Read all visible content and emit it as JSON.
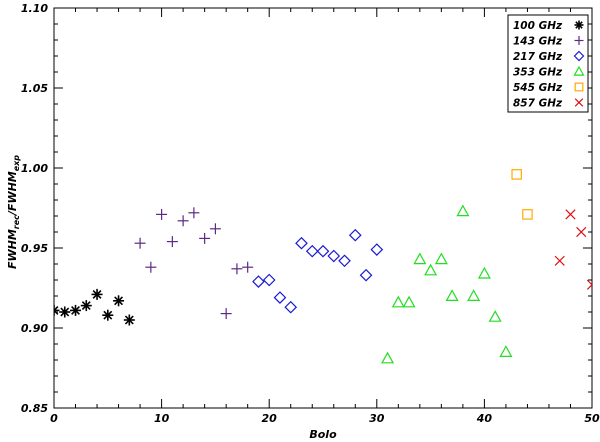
{
  "chart_data": {
    "type": "scatter",
    "title": "",
    "xlabel": "Bolo",
    "ylabel": "FWHM_rec/FWHM_exp",
    "ylabel_main": "FWHM",
    "ylabel_sub1": "rec",
    "ylabel_slash": "/FWHM",
    "ylabel_sub2": "exp",
    "xlim": [
      0,
      50
    ],
    "ylim": [
      0.85,
      1.1
    ],
    "xticks": [
      0,
      10,
      20,
      30,
      40,
      50
    ],
    "xtick_labels": [
      "0",
      "10",
      "20",
      "30",
      "40",
      "50"
    ],
    "yticks": [
      0.85,
      0.9,
      0.95,
      1.0,
      1.05,
      1.1
    ],
    "ytick_labels": [
      "0.85",
      "0.90",
      "0.95",
      "1.00",
      "1.05",
      "1.10"
    ],
    "legend_position": "top-right",
    "grid": false,
    "series": [
      {
        "name": "100 GHz",
        "marker": "asterisk",
        "color": "#000000",
        "x": [
          0,
          1,
          2,
          3,
          4,
          5,
          6,
          7
        ],
        "y": [
          0.911,
          0.91,
          0.911,
          0.914,
          0.921,
          0.908,
          0.917,
          0.905
        ]
      },
      {
        "name": "143 GHz",
        "marker": "plus",
        "color": "#5b2a86",
        "x": [
          8,
          9,
          10,
          11,
          12,
          13,
          14,
          15,
          16,
          17,
          18
        ],
        "y": [
          0.953,
          0.938,
          0.971,
          0.954,
          0.967,
          0.972,
          0.956,
          0.962,
          0.909,
          0.937,
          0.938
        ]
      },
      {
        "name": "217 GHz",
        "marker": "diamond",
        "color": "#1a1ad6",
        "x": [
          19,
          20,
          21,
          22,
          23,
          24,
          25,
          26,
          27,
          28,
          29,
          30
        ],
        "y": [
          0.929,
          0.93,
          0.919,
          0.913,
          0.953,
          0.948,
          0.948,
          0.945,
          0.942,
          0.958,
          0.933,
          0.949
        ]
      },
      {
        "name": "353 GHz",
        "marker": "triangle",
        "color": "#22dd22",
        "x": [
          31,
          32,
          33,
          34,
          35,
          36,
          37,
          38,
          39,
          40,
          41,
          42
        ],
        "y": [
          0.881,
          0.916,
          0.916,
          0.943,
          0.936,
          0.943,
          0.92,
          0.973,
          0.92,
          0.934,
          0.907,
          0.885
        ]
      },
      {
        "name": "545 GHz",
        "marker": "square",
        "color": "#ffaa00",
        "x": [
          43,
          44
        ],
        "y": [
          0.996,
          0.971
        ]
      },
      {
        "name": "857 GHz",
        "marker": "cross",
        "color": "#dd1111",
        "x": [
          47,
          48,
          49,
          50
        ],
        "y": [
          0.942,
          0.971,
          0.96,
          0.927
        ]
      }
    ]
  }
}
